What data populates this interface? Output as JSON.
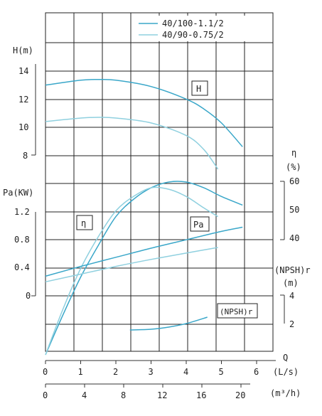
{
  "chart_data": {
    "type": "line",
    "title": "",
    "legend": {
      "placement": "top-right",
      "entries": [
        {
          "label": "40/100-1.1/2",
          "color": "#3aa7c9"
        },
        {
          "label": "40/90-0.75/2",
          "color": "#8fd0df"
        }
      ]
    },
    "x_axis": {
      "name": "Q",
      "unit_ls": "(L/s)",
      "unit_m3h": "(m³/h)",
      "ticks_ls": [
        "0",
        "1",
        "2",
        "3",
        "4",
        "5",
        "6"
      ],
      "ticks_m3h": [
        "0",
        "4",
        "8",
        "12",
        "16",
        "20"
      ],
      "xlim_ls": [
        0,
        6.5
      ]
    },
    "head_axis": {
      "label": "H(m)",
      "ticks": [
        "14",
        "12",
        "10",
        "8"
      ],
      "range": [
        8,
        14
      ]
    },
    "power_axis": {
      "label": "Pa(KW)",
      "ticks": [
        "1.2",
        "0.8",
        "0.4",
        "0"
      ],
      "range": [
        0,
        1.2
      ]
    },
    "eff_axis": {
      "label_top": "η",
      "label_unit": "(%)",
      "ticks": [
        "60",
        "50",
        "40"
      ],
      "range": [
        40,
        60
      ]
    },
    "npsh_axis": {
      "label_top": "(NPSH)r",
      "label_unit": "(m)",
      "ticks": [
        "4",
        "2"
      ],
      "range": [
        2,
        4
      ]
    },
    "curve_labels": {
      "head": "H",
      "efficiency": "η",
      "power": "Pa",
      "npsh": "(NPSH)r"
    },
    "series": [
      {
        "curve": "H",
        "pump": "40/100-1.1/2",
        "color": "#3aa7c9",
        "x": [
          0,
          1,
          1.5,
          2,
          3,
          4,
          4.5,
          5,
          5.6
        ],
        "y": [
          13.0,
          13.35,
          13.4,
          13.35,
          12.9,
          12.0,
          11.3,
          10.3,
          8.6
        ]
      },
      {
        "curve": "H",
        "pump": "40/90-0.75/2",
        "color": "#8fd0df",
        "x": [
          0,
          1,
          1.5,
          2,
          3,
          4,
          4.5,
          4.9
        ],
        "y": [
          10.4,
          10.65,
          10.7,
          10.65,
          10.3,
          9.4,
          8.4,
          7.0
        ]
      },
      {
        "curve": "eta",
        "pump": "40/100-1.1/2",
        "color": "#3aa7c9",
        "x": [
          0,
          0.5,
          1,
          1.5,
          2,
          2.5,
          3,
          3.5,
          4,
          4.5,
          5,
          5.6
        ],
        "y": [
          0,
          14,
          27,
          38,
          48,
          54,
          58,
          60,
          60,
          58,
          55,
          52
        ]
      },
      {
        "curve": "eta",
        "pump": "40/90-0.75/2",
        "color": "#8fd0df",
        "x": [
          0,
          0.5,
          1,
          1.5,
          2,
          2.5,
          3,
          3.5,
          4,
          4.5,
          4.9
        ],
        "y": [
          0,
          16,
          30,
          41,
          50,
          55,
          58,
          57.5,
          55,
          51,
          48
        ]
      },
      {
        "curve": "Pa",
        "pump": "40/100-1.1/2",
        "color": "#3aa7c9",
        "x": [
          0,
          1,
          2,
          3,
          4,
          5,
          5.6
        ],
        "y": [
          0.28,
          0.42,
          0.55,
          0.68,
          0.8,
          0.92,
          0.98
        ]
      },
      {
        "curve": "Pa",
        "pump": "40/90-0.75/2",
        "color": "#8fd0df",
        "x": [
          0,
          1,
          2,
          3,
          4,
          4.9
        ],
        "y": [
          0.2,
          0.31,
          0.42,
          0.52,
          0.61,
          0.69
        ]
      },
      {
        "curve": "NPSHr",
        "pump": "40/100-1.1/2",
        "color": "#3aa7c9",
        "x": [
          2.4,
          3,
          3.5,
          4,
          4.6
        ],
        "y": [
          1.7,
          1.75,
          1.9,
          2.15,
          2.6
        ]
      }
    ]
  }
}
